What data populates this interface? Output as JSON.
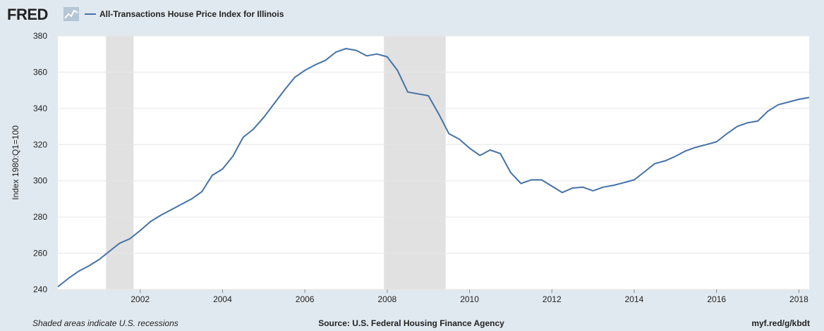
{
  "header": {
    "logo_text": "FRED",
    "legend_label": "All-Transactions House Price Index for Illinois"
  },
  "footer": {
    "note": "Shaded areas indicate U.S. recessions",
    "source": "Source: U.S. Federal Housing Finance Agency",
    "url": "myf.red/g/kbdt"
  },
  "colors": {
    "background": "#e1e9f0",
    "plot_background": "#ffffff",
    "series": "#4572a7",
    "recession": "#e1e1e1",
    "grid": "#e6e6e6"
  },
  "chart_data": {
    "type": "line",
    "title": "",
    "xlabel": "",
    "ylabel": "Index 1980:Q1=100",
    "xlim": [
      2000.0,
      2018.25
    ],
    "ylim": [
      240,
      380
    ],
    "yticks": [
      240,
      260,
      280,
      300,
      320,
      340,
      360,
      380
    ],
    "xticks": [
      2002,
      2004,
      2006,
      2008,
      2010,
      2012,
      2014,
      2016,
      2018
    ],
    "grid": true,
    "legend_position": "top-left",
    "recessions": [
      [
        2001.17,
        2001.84
      ],
      [
        2007.92,
        2009.42
      ]
    ],
    "series": [
      {
        "name": "All-Transactions House Price Index for Illinois",
        "x": [
          2000.0,
          2000.25,
          2000.5,
          2000.75,
          2001.0,
          2001.25,
          2001.5,
          2001.75,
          2002.0,
          2002.25,
          2002.5,
          2002.75,
          2003.0,
          2003.25,
          2003.5,
          2003.75,
          2004.0,
          2004.25,
          2004.5,
          2004.75,
          2005.0,
          2005.25,
          2005.5,
          2005.75,
          2006.0,
          2006.25,
          2006.5,
          2006.75,
          2007.0,
          2007.25,
          2007.5,
          2007.75,
          2008.0,
          2008.25,
          2008.5,
          2008.75,
          2009.0,
          2009.25,
          2009.5,
          2009.75,
          2010.0,
          2010.25,
          2010.5,
          2010.75,
          2011.0,
          2011.25,
          2011.5,
          2011.75,
          2012.0,
          2012.25,
          2012.5,
          2012.75,
          2013.0,
          2013.25,
          2013.5,
          2013.75,
          2014.0,
          2014.25,
          2014.5,
          2014.75,
          2015.0,
          2015.25,
          2015.5,
          2015.75,
          2016.0,
          2016.25,
          2016.5,
          2016.75,
          2017.0,
          2017.25,
          2017.5,
          2017.75,
          2018.0,
          2018.25
        ],
        "y": [
          241.5,
          246.0,
          250.0,
          253.0,
          256.5,
          261.0,
          265.5,
          268.0,
          272.5,
          277.5,
          281.0,
          284.0,
          287.0,
          290.0,
          294.0,
          303.0,
          306.5,
          313.5,
          324.0,
          328.5,
          335.0,
          342.5,
          350.0,
          357.0,
          361.0,
          364.0,
          366.5,
          371.0,
          373.0,
          372.0,
          369.0,
          370.0,
          368.5,
          361.0,
          349.0,
          348.0,
          347.0,
          337.0,
          326.0,
          323.0,
          318.0,
          314.0,
          317.0,
          315.0,
          304.5,
          298.5,
          300.5,
          300.5,
          297.0,
          293.5,
          296.0,
          296.5,
          294.5,
          296.5,
          297.5,
          299.0,
          300.5,
          305.0,
          309.5,
          311.0,
          313.5,
          316.5,
          318.5,
          320.0,
          321.5,
          326.0,
          330.0,
          332.0,
          333.0,
          338.5,
          342.0,
          343.5,
          345.0,
          346.0
        ]
      }
    ]
  }
}
